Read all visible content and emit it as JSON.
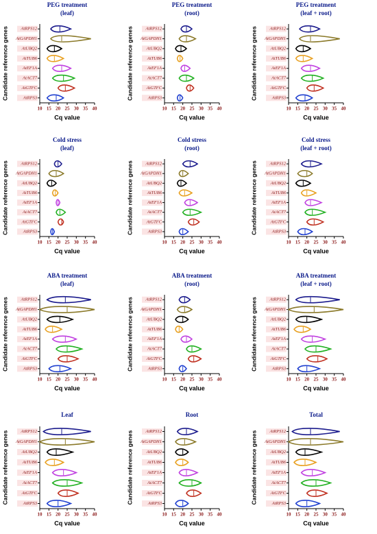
{
  "chart_data": [
    {
      "type": "violin",
      "title": "PEG treatment",
      "subtitle": "(leaf)",
      "xlabel": "Cq value",
      "ylabel": "Candidate reference genes",
      "categories": [
        "AtRPS12",
        "AtGAPDH1",
        "AtUBQ2",
        "AtTUB6",
        "AtEF1A",
        "AtACT7",
        "AtGTFC",
        "AtRPS3"
      ],
      "colors": [
        "#1a1a8c",
        "#8b7a2a",
        "#000000",
        "#e8a020",
        "#c040e0",
        "#20b020",
        "#c03020",
        "#2040d0"
      ],
      "min": [
        16,
        16,
        14,
        14,
        17,
        17,
        20,
        14
      ],
      "median": [
        21,
        22,
        18,
        18,
        22,
        23,
        24,
        19
      ],
      "max": [
        27,
        38,
        22,
        23,
        27,
        29,
        29,
        23
      ],
      "xlim": [
        10,
        40
      ],
      "xticks": [
        10,
        15,
        20,
        25,
        30,
        35,
        40
      ]
    },
    {
      "type": "violin",
      "title": "PEG treatment",
      "subtitle": "(root)",
      "xlabel": "Cq value",
      "ylabel": "Candidate reference genes",
      "categories": [
        "AtRPS12",
        "AtGAPDH1",
        "AtUBQ2",
        "AtTUB6",
        "AtEF1A",
        "AtACT7",
        "AtGTFC",
        "AtRPS3"
      ],
      "colors": [
        "#1a1a8c",
        "#8b7a2a",
        "#000000",
        "#e8a020",
        "#c040e0",
        "#20b020",
        "#c03020",
        "#2040d0"
      ],
      "min": [
        19,
        18,
        16,
        17,
        19,
        18,
        22,
        17
      ],
      "median": [
        22,
        22,
        19,
        18.5,
        21,
        22,
        24,
        18.5
      ],
      "max": [
        25,
        27,
        22,
        20,
        24,
        26,
        26,
        20
      ],
      "xlim": [
        10,
        40
      ],
      "xticks": [
        10,
        15,
        20,
        25,
        30,
        35,
        40
      ]
    },
    {
      "type": "violin",
      "title": "PEG treatment",
      "subtitle": "(leaf + root)",
      "xlabel": "Cq value",
      "ylabel": "Candidate reference genes",
      "categories": [
        "AtRPS12",
        "AtGAPDH1",
        "AtUBQ2",
        "AtTUB6",
        "AtEF1A",
        "AtACT7",
        "AtGTFC",
        "AtRPS3"
      ],
      "colors": [
        "#1a1a8c",
        "#8b7a2a",
        "#000000",
        "#e8a020",
        "#c040e0",
        "#20b020",
        "#c03020",
        "#2040d0"
      ],
      "min": [
        16,
        16,
        14,
        14,
        17,
        17,
        20,
        14
      ],
      "median": [
        22,
        22,
        18,
        18,
        22,
        23,
        24,
        19
      ],
      "max": [
        27,
        38,
        22,
        23,
        27,
        29,
        29,
        23
      ],
      "xlim": [
        10,
        40
      ],
      "xticks": [
        10,
        15,
        20,
        25,
        30,
        35,
        40
      ]
    },
    {
      "type": "violin",
      "title": "Cold stress",
      "subtitle": "(leaf)",
      "xlabel": "Cq value",
      "ylabel": "Candidate reference genes",
      "categories": [
        "AtRPS12",
        "AtGAPDH1",
        "AtUBQ2",
        "AtTUB6",
        "AtEF1A",
        "AtACT7",
        "AtGTFC",
        "AtRPS3"
      ],
      "colors": [
        "#1a1a8c",
        "#8b7a2a",
        "#000000",
        "#e8a020",
        "#c040e0",
        "#20b020",
        "#c03020",
        "#2040d0"
      ],
      "min": [
        18,
        15,
        14,
        17,
        19,
        19,
        20,
        16
      ],
      "median": [
        20,
        19,
        16.5,
        18.5,
        20,
        21,
        22,
        17
      ],
      "max": [
        22,
        23,
        19,
        20,
        21,
        24,
        23,
        18
      ],
      "xlim": [
        10,
        40
      ],
      "xticks": [
        10,
        15,
        20,
        25,
        30,
        35,
        40
      ]
    },
    {
      "type": "violin",
      "title": "Cold stress",
      "subtitle": "(root)",
      "xlabel": "Cq value",
      "ylabel": "Candidate reference genes",
      "categories": [
        "AtRPS12",
        "AtGAPDH1",
        "AtUBQ2",
        "AtTUB6",
        "AtEF1A",
        "AtACT7",
        "AtGTFC",
        "AtRPS3"
      ],
      "colors": [
        "#1a1a8c",
        "#8b7a2a",
        "#000000",
        "#e8a020",
        "#c040e0",
        "#20b020",
        "#c03020",
        "#2040d0"
      ],
      "min": [
        20,
        18,
        17,
        18,
        21,
        20,
        23,
        18
      ],
      "median": [
        24,
        20,
        19,
        21,
        24,
        24,
        26,
        20
      ],
      "max": [
        28,
        23,
        22,
        25,
        28,
        30,
        29,
        23
      ],
      "xlim": [
        10,
        40
      ],
      "xticks": [
        10,
        15,
        20,
        25,
        30,
        35,
        40
      ]
    },
    {
      "type": "violin",
      "title": "Cold stress",
      "subtitle": "(leaf + root)",
      "xlabel": "Cq value",
      "ylabel": "Candidate reference genes",
      "categories": [
        "AtRPS12",
        "AtGAPDH1",
        "AtUBQ2",
        "AtTUB6",
        "AtEF1A",
        "AtACT7",
        "AtGTFC",
        "AtRPS3"
      ],
      "colors": [
        "#1a1a8c",
        "#8b7a2a",
        "#000000",
        "#e8a020",
        "#c040e0",
        "#20b020",
        "#c03020",
        "#2040d0"
      ],
      "min": [
        17,
        15,
        14,
        17,
        19,
        19,
        20,
        15
      ],
      "median": [
        22,
        20,
        18,
        20,
        22,
        23,
        24,
        19
      ],
      "max": [
        28,
        23,
        22,
        25,
        28,
        30,
        29,
        23
      ],
      "xlim": [
        10,
        40
      ],
      "xticks": [
        10,
        15,
        20,
        25,
        30,
        35,
        40
      ]
    },
    {
      "type": "violin",
      "title": "ABA treatment",
      "subtitle": "(leaf)",
      "xlabel": "Cq value",
      "ylabel": "Candidate reference genes",
      "categories": [
        "AtRPS12",
        "AtGAPDH1",
        "AtUBQ2",
        "AtTUB6",
        "AtEF1A",
        "AtACT7",
        "AtGTFC",
        "AtRPS3"
      ],
      "colors": [
        "#1a1a8c",
        "#8b7a2a",
        "#000000",
        "#e8a020",
        "#c040e0",
        "#20b020",
        "#c03020",
        "#2040d0"
      ],
      "min": [
        14,
        10,
        14,
        13,
        17,
        19,
        20,
        15
      ],
      "median": [
        24,
        25,
        21,
        17,
        24,
        25,
        25,
        21
      ],
      "max": [
        38,
        40,
        28,
        22,
        30,
        33,
        31,
        27
      ],
      "xlim": [
        10,
        40
      ],
      "xticks": [
        10,
        15,
        20,
        25,
        30,
        35,
        40
      ]
    },
    {
      "type": "violin",
      "title": "ABA treatment",
      "subtitle": "(root)",
      "xlabel": "Cq value",
      "ylabel": "Candidate reference genes",
      "categories": [
        "AtRPS12",
        "AtGAPDH1",
        "AtUBQ2",
        "AtTUB6",
        "AtEF1A",
        "AtACT7",
        "AtGTFC",
        "AtRPS3"
      ],
      "colors": [
        "#1a1a8c",
        "#8b7a2a",
        "#000000",
        "#e8a020",
        "#c040e0",
        "#20b020",
        "#c03020",
        "#2040d0"
      ],
      "min": [
        18,
        17,
        16,
        16,
        19,
        22,
        23,
        18
      ],
      "median": [
        21,
        21,
        20,
        18,
        22,
        25,
        26,
        20
      ],
      "max": [
        24,
        25,
        23,
        20,
        25,
        30,
        30,
        22
      ],
      "xlim": [
        10,
        40
      ],
      "xticks": [
        10,
        15,
        20,
        25,
        30,
        35,
        40
      ]
    },
    {
      "type": "violin",
      "title": "ABA treatment",
      "subtitle": "(leaf + root)",
      "xlabel": "Cq value",
      "ylabel": "Candidate reference genes",
      "categories": [
        "AtRPS12",
        "AtGAPDH1",
        "AtUBQ2",
        "AtTUB6",
        "AtEF1A",
        "AtACT7",
        "AtGTFC",
        "AtRPS3"
      ],
      "colors": [
        "#1a1a8c",
        "#8b7a2a",
        "#000000",
        "#e8a020",
        "#c040e0",
        "#20b020",
        "#c03020",
        "#2040d0"
      ],
      "min": [
        14,
        10,
        14,
        13,
        17,
        19,
        20,
        15
      ],
      "median": [
        22,
        24,
        20,
        18,
        23,
        25,
        26,
        20
      ],
      "max": [
        38,
        40,
        28,
        22,
        30,
        33,
        31,
        27
      ],
      "xlim": [
        10,
        40
      ],
      "xticks": [
        10,
        15,
        20,
        25,
        30,
        35,
        40
      ]
    },
    {
      "type": "violin",
      "title": "Leaf",
      "xlabel": "Cq value",
      "ylabel": "Candidate reference genes",
      "categories": [
        "AtRPS12",
        "AtGAPDH1",
        "AtUBQ2",
        "AtTUB6",
        "AtEF1A",
        "AtACT7",
        "AtGTFC",
        "AtRPS3"
      ],
      "colors": [
        "#1a1a8c",
        "#8b7a2a",
        "#000000",
        "#e8a020",
        "#c040e0",
        "#20b020",
        "#c03020",
        "#2040d0"
      ],
      "min": [
        12,
        10,
        14,
        13,
        17,
        17,
        20,
        14
      ],
      "median": [
        22,
        24,
        19,
        18,
        23,
        25,
        25,
        20
      ],
      "max": [
        38,
        40,
        28,
        23,
        30,
        33,
        31,
        27
      ],
      "xlim": [
        10,
        40
      ],
      "xticks": [
        10,
        15,
        20,
        25,
        30,
        35,
        40
      ]
    },
    {
      "type": "violin",
      "title": "Root",
      "xlabel": "Cq value",
      "ylabel": "Candidate reference genes",
      "categories": [
        "AtRPS12",
        "AtGAPDH1",
        "AtUBQ2",
        "AtTUB6",
        "AtEF1A",
        "AtACT7",
        "AtGTFC",
        "AtRPS3"
      ],
      "colors": [
        "#1a1a8c",
        "#8b7a2a",
        "#000000",
        "#e8a020",
        "#c040e0",
        "#20b020",
        "#c03020",
        "#2040d0"
      ],
      "min": [
        17,
        16,
        16,
        16,
        18,
        18,
        22,
        16
      ],
      "median": [
        22,
        21,
        20,
        20,
        22,
        25,
        26,
        20
      ],
      "max": [
        28,
        27,
        23,
        23,
        28,
        30,
        30,
        23
      ],
      "xlim": [
        10,
        40
      ],
      "xticks": [
        10,
        15,
        20,
        25,
        30,
        35,
        40
      ]
    },
    {
      "type": "violin",
      "title": "Total",
      "xlabel": "Cq value",
      "ylabel": "Candidate reference genes",
      "categories": [
        "AtRPS12",
        "AtGAPDH1",
        "AtUBQ2",
        "AtTUB6",
        "AtEF1A",
        "AtACT7",
        "AtGTFC",
        "AtRPS3"
      ],
      "colors": [
        "#1a1a8c",
        "#8b7a2a",
        "#000000",
        "#e8a020",
        "#c040e0",
        "#20b020",
        "#c03020",
        "#2040d0"
      ],
      "min": [
        12,
        10,
        14,
        13,
        17,
        17,
        20,
        14
      ],
      "median": [
        22,
        22,
        19,
        19,
        23,
        25,
        25,
        20
      ],
      "max": [
        38,
        40,
        28,
        25,
        30,
        33,
        31,
        27
      ],
      "xlim": [
        10,
        40
      ],
      "xticks": [
        10,
        15,
        20,
        25,
        30,
        35,
        40
      ]
    }
  ]
}
